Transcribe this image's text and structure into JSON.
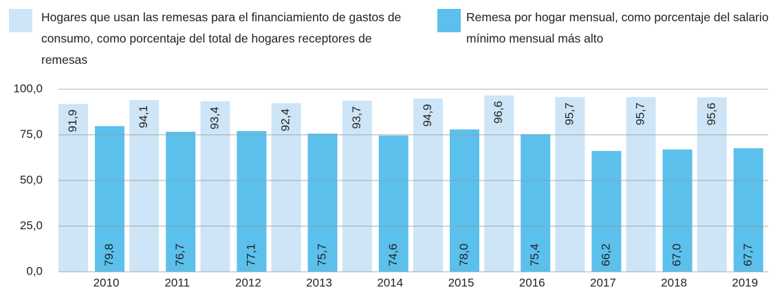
{
  "chart_data": {
    "type": "bar",
    "categories": [
      "2010",
      "2011",
      "2012",
      "2013",
      "2014",
      "2015",
      "2016",
      "2017",
      "2018",
      "2019"
    ],
    "series": [
      {
        "name": "Hogares que usan las remesas para el financiamiento de gastos de consumo, como porcentaje del total de hogares receptores de remesas",
        "color": "#cde5f6",
        "values": [
          91.9,
          94.1,
          93.4,
          92.4,
          93.7,
          94.9,
          96.6,
          95.7,
          95.7,
          95.6
        ],
        "value_labels": [
          "91,9",
          "94,1",
          "93,4",
          "92,4",
          "93,7",
          "94,9",
          "96,6",
          "95,7",
          "95,7",
          "95,6"
        ]
      },
      {
        "name": "Remesa por hogar mensual, como porcentaje del salario mínimo mensual más alto",
        "color": "#5bc0ec",
        "values": [
          79.8,
          76.7,
          77.1,
          75.7,
          74.6,
          78.0,
          75.4,
          66.2,
          67.0,
          67.7
        ],
        "value_labels": [
          "79,8",
          "76,7",
          "77,1",
          "75,7",
          "74,6",
          "78,0",
          "75,4",
          "66,2",
          "67,0",
          "67,7"
        ]
      }
    ],
    "ylim": [
      0,
      100
    ],
    "yticks": [
      {
        "value": 0,
        "label": "0,0"
      },
      {
        "value": 25,
        "label": "25,0"
      },
      {
        "value": 50,
        "label": "50,0"
      },
      {
        "value": 75,
        "label": "75,0"
      },
      {
        "value": 100,
        "label": "100,0"
      }
    ],
    "grid": true
  }
}
